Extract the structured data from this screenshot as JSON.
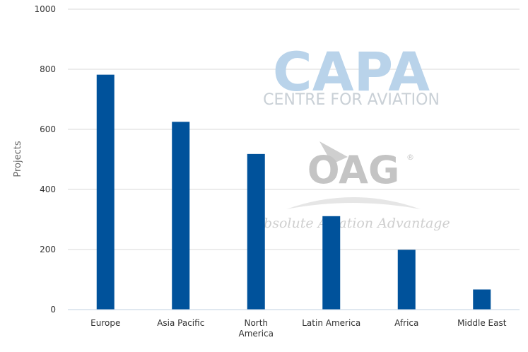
{
  "chart_data": {
    "type": "bar",
    "title": "",
    "xlabel": "",
    "ylabel": "Projects",
    "ylim": [
      0,
      1000
    ],
    "yticks": [
      0,
      200,
      400,
      600,
      800,
      1000
    ],
    "grid": true,
    "legend": "none",
    "categories": [
      "Europe",
      "Asia Pacific",
      "North America",
      "Latin America",
      "Africa",
      "Middle East"
    ],
    "category_label_lines": [
      [
        "Europe"
      ],
      [
        "Asia Pacific"
      ],
      [
        "North",
        "America"
      ],
      [
        "Latin America"
      ],
      [
        "Africa"
      ],
      [
        "Middle East"
      ]
    ],
    "values": [
      782,
      625,
      518,
      311,
      199,
      67
    ],
    "bar_color": "#00529b"
  },
  "watermark": {
    "capa_logo": "CAPA",
    "capa_tagline": "CENTRE FOR AVIATION",
    "oag_logo": "OAG",
    "oag_registered": "®",
    "oag_tagline": "Absolute Aviation Advantage"
  },
  "colors": {
    "gridline": "#d8d8d8",
    "axis_line": "#c0d0e0"
  }
}
